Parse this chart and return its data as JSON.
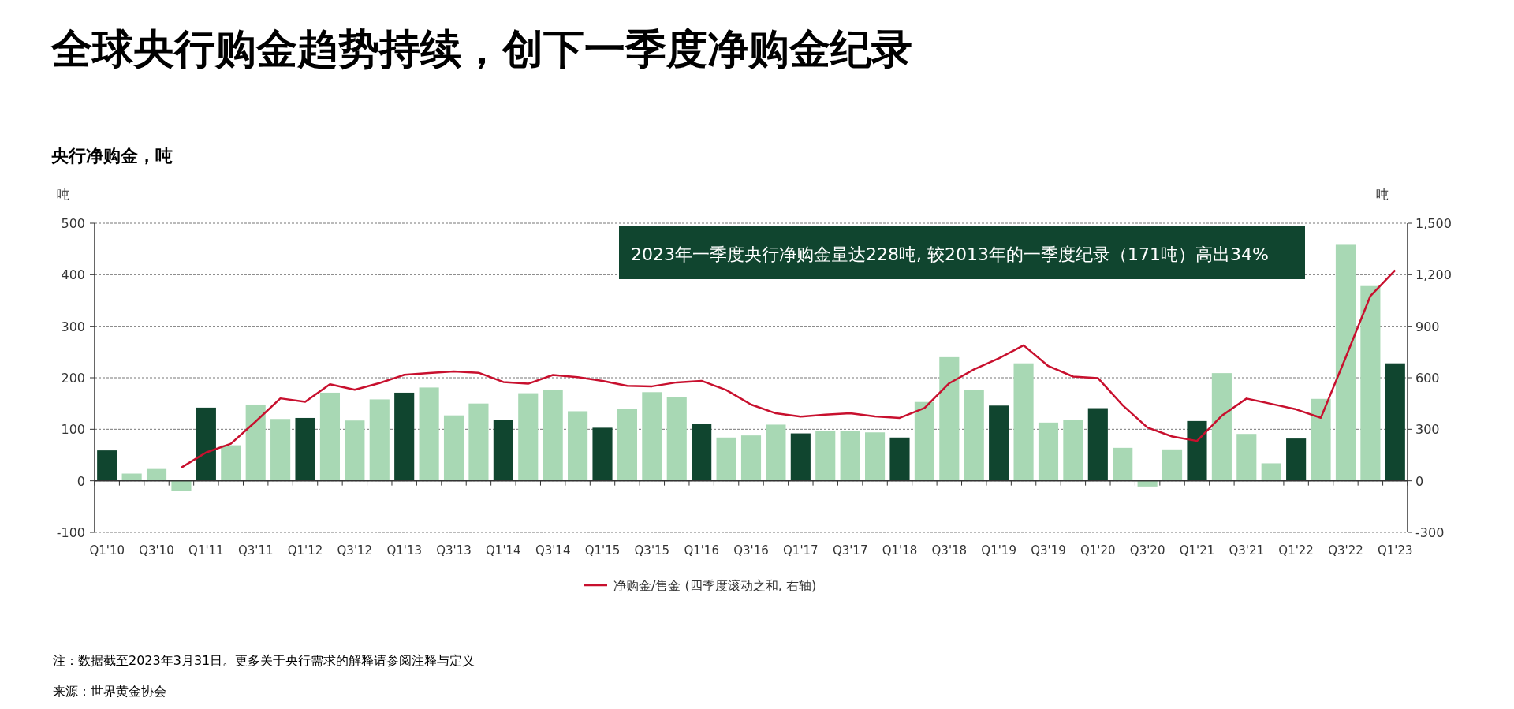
{
  "chart_data": {
    "type": "bar",
    "title": "全球央行购金趋势持续，创下一季度净购金纪录",
    "subtitle": "央行净购金，吨",
    "ylabel": "吨",
    "y2label": "吨",
    "annotations": [
      "2023年一季度央行净购金量达228吨, 较2013年的一季度纪录（171吨）高出34%",
      "注：数据截至2023年3月31日。更多关于央行需求的解释请参阅注释与定义",
      "来源：世界黄金协会"
    ],
    "categories": [
      "Q1'10",
      null,
      "Q3'10",
      null,
      "Q1'11",
      null,
      "Q3'11",
      null,
      "Q1'12",
      null,
      "Q3'12",
      null,
      "Q1'13",
      null,
      "Q3'13",
      null,
      "Q1'14",
      null,
      "Q3'14",
      null,
      "Q1'15",
      null,
      "Q3'15",
      null,
      "Q1'16",
      null,
      "Q3'16",
      null,
      "Q1'17",
      null,
      "Q3'17",
      null,
      "Q1'18",
      null,
      "Q3'18",
      null,
      "Q1'19",
      null,
      "Q3'19",
      null,
      "Q1'20",
      null,
      "Q3'20",
      null,
      "Q1'21",
      null,
      "Q3'21",
      null,
      "Q1'22",
      null,
      "Q3'22",
      null,
      "Q1'23"
    ],
    "series": [
      {
        "colors": [
          "#10452f",
          "#a8d8b4",
          "#a8d8b4",
          "#a8d8b4",
          "#10452f",
          "#a8d8b4",
          "#a8d8b4",
          "#a8d8b4",
          "#10452f",
          "#a8d8b4",
          "#a8d8b4",
          "#a8d8b4",
          "#10452f",
          "#a8d8b4",
          "#a8d8b4",
          "#a8d8b4",
          "#10452f",
          "#a8d8b4",
          "#a8d8b4",
          "#a8d8b4",
          "#10452f",
          "#a8d8b4",
          "#a8d8b4",
          "#a8d8b4",
          "#10452f",
          "#a8d8b4",
          "#a8d8b4",
          "#a8d8b4",
          "#10452f",
          "#a8d8b4",
          "#a8d8b4",
          "#a8d8b4",
          "#10452f",
          "#a8d8b4",
          "#a8d8b4",
          "#a8d8b4",
          "#10452f",
          "#a8d8b4",
          "#a8d8b4",
          "#a8d8b4",
          "#10452f",
          "#a8d8b4",
          "#a8d8b4",
          "#a8d8b4",
          "#10452f",
          "#a8d8b4",
          "#a8d8b4",
          "#a8d8b4",
          "#10452f",
          "#a8d8b4",
          "#a8d8b4",
          "#a8d8b4",
          "#10452f"
        ],
        "values": [
          59,
          14,
          23,
          -19,
          142,
          69,
          148,
          120,
          122,
          171,
          117,
          158,
          171,
          181,
          127,
          150,
          118,
          170,
          176,
          135,
          103,
          140,
          172,
          162,
          110,
          84,
          88,
          109,
          92,
          96,
          96,
          94,
          84,
          153,
          240,
          177,
          146,
          228,
          113,
          118,
          141,
          64,
          -11,
          61,
          116,
          209,
          91,
          34,
          82,
          159,
          458,
          378,
          228
        ]
      },
      {
        "type": "line",
        "name": "净购金/售金 (四季度滚动之和, 右轴)",
        "color": "#c8102e",
        "axis": "y2",
        "values": [
          null,
          null,
          null,
          77,
          165,
          216,
          345,
          480,
          460,
          562,
          530,
          569,
          617,
          627,
          637,
          629,
          575,
          565,
          616,
          603,
          582,
          553,
          550,
          573,
          582,
          528,
          444,
          393,
          374,
          385,
          393,
          375,
          366,
          424,
          568,
          649,
          713,
          789,
          668,
          607,
          598,
          440,
          310,
          258,
          232,
          379,
          479,
          448,
          416,
          367,
          717,
          1076,
          1226
        ]
      }
    ],
    "ylim": [
      -100,
      500
    ],
    "yticks": [
      -100,
      0,
      100,
      200,
      300,
      400,
      500
    ],
    "y2lim": [
      -300,
      1500
    ],
    "y2ticks": [
      -300,
      0,
      300,
      600,
      900,
      {
        "value": 1200,
        "label": "1,200"
      },
      {
        "value": 1500,
        "label": "1,500"
      }
    ],
    "grid": "y",
    "legend": "bottom"
  }
}
